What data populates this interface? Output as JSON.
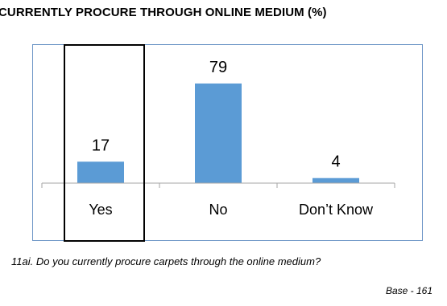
{
  "title": "CURRENTLY PROCURE THROUGH ONLINE MEDIUM (%)",
  "question": "11ai. Do you currently procure carpets through the online medium?",
  "base": "Base - 161",
  "chart_data": {
    "type": "bar",
    "categories": [
      "Yes",
      "No",
      "Don’t Know"
    ],
    "values": [
      17,
      79,
      4
    ],
    "ylim": [
      0,
      100
    ],
    "bar_color": "#5b9bd5",
    "grid": false,
    "highlighted_category": "Yes"
  }
}
